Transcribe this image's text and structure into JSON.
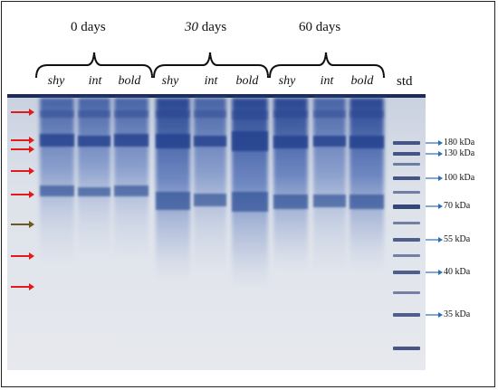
{
  "groups": [
    {
      "label_num": "0",
      "label_unit": " days",
      "italic": false
    },
    {
      "label_num": "30",
      "label_unit": " days",
      "italic": true
    },
    {
      "label_num": "60",
      "label_unit": " days",
      "italic": false
    }
  ],
  "lanes": [
    "shy",
    "int",
    "bold",
    "shy",
    "int",
    "bold",
    "shy",
    "int",
    "bold"
  ],
  "std_label": "std",
  "markers": [
    {
      "label": "180 kDa"
    },
    {
      "label": "130 kDa"
    },
    {
      "label": "100 kDa"
    },
    {
      "label": "70 kDa"
    },
    {
      "label": "55 kDa"
    },
    {
      "label": "40 kDa"
    },
    {
      "label": "35 kDa"
    }
  ],
  "colors": {
    "gel_background": "#e3e6ec",
    "band": "#3b5aa8",
    "red_arrow": "#e01b1b",
    "olive_arrow": "#6b5a1f",
    "marker_arrow": "#2a6fb3"
  }
}
